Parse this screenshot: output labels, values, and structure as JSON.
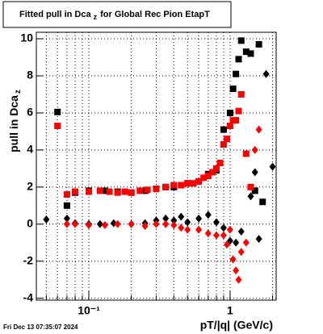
{
  "chart_data": {
    "type": "scatter",
    "title": "Fitted pull in Dca",
    "title_sub": "z",
    "title_end": "for Global Rec Pion EtapT",
    "y_label": "pull in Dca",
    "y_label_sub": "z",
    "x_label": "pT/|q| (GeV/c)",
    "footer": "Fri Dec 13 07:35:07 2024",
    "log_x": true,
    "grid": true,
    "xlim": [
      0.0425,
      2.12
    ],
    "ylim": [
      -4.1,
      10.35
    ],
    "xticks": [
      {
        "value": 0.1,
        "label": "10⁻¹"
      },
      1
    ],
    "xminorticks": [
      0.05,
      0.06,
      0.07,
      0.08,
      0.09,
      0.2,
      0.3,
      0.4,
      0.5,
      0.6,
      0.7,
      0.8,
      0.9,
      2
    ],
    "yticks": [
      -4,
      -2,
      0,
      2,
      4,
      6,
      8,
      10
    ],
    "series": [
      {
        "color": "#000000",
        "marker": "square",
        "x": [
          0.06,
          0.07,
          0.08,
          0.1,
          0.13,
          0.16,
          0.2,
          0.25,
          0.3,
          0.35,
          0.4,
          0.5,
          0.6,
          0.7,
          0.8,
          0.9,
          1.0,
          1.05,
          1.1,
          1.15,
          1.2,
          1.3,
          1.4,
          1.5,
          1.6,
          1.7
        ],
        "values": [
          6.05,
          1.0,
          1.7,
          1.8,
          1.8,
          1.75,
          1.7,
          1.8,
          1.9,
          2.0,
          2.0,
          2.2,
          2.3,
          2.7,
          2.9,
          5.1,
          6.0,
          7.3,
          8.1,
          8.9,
          9.9,
          9.3,
          9.2,
          1.8,
          9.7,
          1.2
        ]
      },
      {
        "color": "#ff0000",
        "marker": "square",
        "x": [
          0.06,
          0.07,
          0.08,
          0.1,
          0.12,
          0.14,
          0.16,
          0.18,
          0.2,
          0.23,
          0.26,
          0.3,
          0.35,
          0.4,
          0.45,
          0.5,
          0.55,
          0.6,
          0.65,
          0.7,
          0.75,
          0.8,
          0.85,
          0.9,
          0.95,
          1.0,
          1.05,
          1.1,
          1.15,
          1.2,
          1.3,
          1.4
        ],
        "values": [
          5.3,
          1.6,
          1.75,
          1.75,
          1.8,
          1.75,
          1.7,
          1.75,
          1.7,
          1.8,
          1.85,
          1.9,
          2.0,
          2.1,
          2.1,
          2.2,
          2.2,
          2.3,
          2.5,
          2.6,
          2.8,
          3.0,
          3.3,
          4.3,
          4.6,
          5.3,
          5.6,
          5.6,
          6.1,
          7.0,
          3.8,
          2.0
        ]
      },
      {
        "color": "#000000",
        "marker": "diamond",
        "x": [
          0.05,
          0.07,
          0.08,
          0.1,
          0.12,
          0.15,
          0.2,
          0.25,
          0.3,
          0.35,
          0.4,
          0.45,
          0.5,
          0.6,
          0.7,
          0.8,
          0.9,
          1.0,
          1.1,
          1.2,
          1.4,
          1.5,
          1.6,
          1.8,
          2.0
        ],
        "values": [
          0.25,
          0.3,
          0.05,
          0.0,
          0.0,
          0.05,
          0.0,
          0.05,
          0.2,
          0.3,
          0.2,
          0.4,
          0.1,
          0.3,
          0.5,
          0.1,
          -0.2,
          -0.9,
          -1.0,
          -0.4,
          1.5,
          2.8,
          -0.8,
          8.1,
          3.1
        ]
      },
      {
        "color": "#ff0000",
        "marker": "diamond",
        "x": [
          0.07,
          0.08,
          0.1,
          0.13,
          0.16,
          0.2,
          0.25,
          0.3,
          0.35,
          0.4,
          0.45,
          0.5,
          0.6,
          0.7,
          0.8,
          0.9,
          0.95,
          1.0,
          1.05,
          1.1,
          1.15,
          1.2,
          1.3,
          1.5,
          1.6
        ],
        "values": [
          0.0,
          0.0,
          -0.05,
          -0.05,
          0.0,
          0.0,
          -0.1,
          0.0,
          0.0,
          -0.05,
          -0.2,
          -0.3,
          -0.3,
          -0.5,
          -0.6,
          -0.6,
          -1.1,
          -0.3,
          -1.9,
          -2.5,
          -3.0,
          -1.5,
          -1.0,
          4.0,
          5.1
        ]
      }
    ]
  }
}
